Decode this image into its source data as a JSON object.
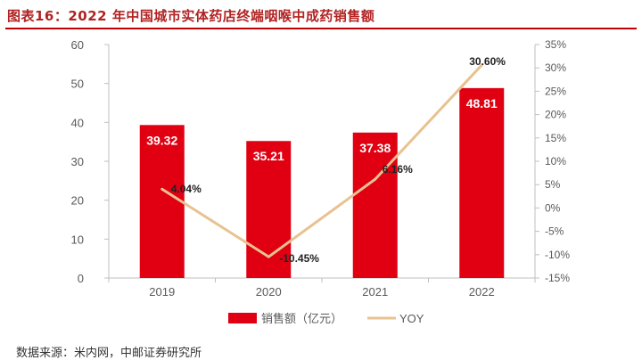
{
  "figure_title": "图表16：2022 年中国城市实体药店终端咽喉中成药销售额",
  "source": "数据来源：米内网，中邮证券研究所",
  "colors": {
    "bar": "#e00012",
    "line": "#e8c290",
    "axis": "#bfbfbf",
    "text": "#595959",
    "title": "#b22222"
  },
  "chart_data": {
    "type": "bar",
    "title": "",
    "categories": [
      "2019",
      "2020",
      "2021",
      "2022"
    ],
    "series": [
      {
        "name": "销售额（亿元）",
        "type": "bar",
        "axis": "left",
        "values": [
          39.32,
          35.21,
          37.38,
          48.81
        ],
        "labels": [
          "39.32",
          "35.21",
          "37.38",
          "48.81"
        ]
      },
      {
        "name": "YOY",
        "type": "line",
        "axis": "right",
        "values": [
          4.04,
          -10.45,
          6.16,
          30.6
        ],
        "labels": [
          "4.04%",
          "-10.45%",
          "6.16%",
          "30.60%"
        ]
      }
    ],
    "ylim": [
      0,
      60
    ],
    "yticks": [
      "0",
      "10",
      "20",
      "30",
      "40",
      "50",
      "60"
    ],
    "y2lim": [
      -15,
      35
    ],
    "y2ticks": [
      "-15%",
      "-10%",
      "-5%",
      "0%",
      "5%",
      "10%",
      "15%",
      "20%",
      "25%",
      "30%",
      "35%"
    ],
    "xlabel": "",
    "ylabel": "",
    "y2label": "",
    "grid": false,
    "legend_position": "bottom"
  }
}
